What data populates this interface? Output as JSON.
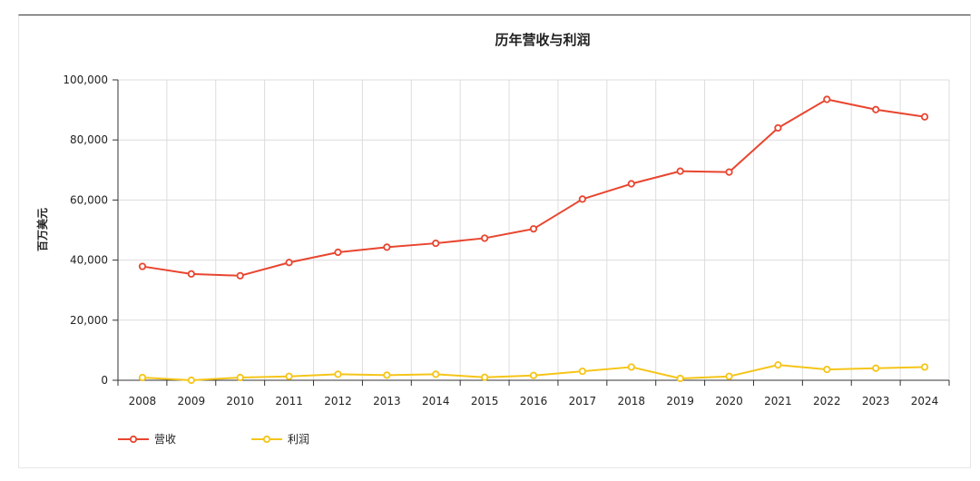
{
  "chart_data": {
    "type": "line",
    "title": "历年营收与利润",
    "ylabel": "百万美元",
    "xlabel": "",
    "x": [
      "2008",
      "2009",
      "2010",
      "2011",
      "2012",
      "2013",
      "2014",
      "2015",
      "2016",
      "2017",
      "2018",
      "2019",
      "2020",
      "2021",
      "2022",
      "2023",
      "2024"
    ],
    "ylim": [
      0,
      100000
    ],
    "yticks": [
      0,
      20000,
      40000,
      60000,
      80000,
      100000
    ],
    "ytick_labels": [
      "0",
      "20,000",
      "40,000",
      "60,000",
      "80,000",
      "100,000"
    ],
    "grid": true,
    "legend_position": "bottom-left",
    "series": [
      {
        "name": "营收",
        "color": "#e8452f",
        "values": [
          37900,
          35400,
          34800,
          39200,
          42600,
          44300,
          45600,
          47300,
          50400,
          60300,
          65400,
          69600,
          69300,
          84000,
          93500,
          90100,
          87700
        ]
      },
      {
        "name": "利润",
        "color": "#f5c518",
        "values": [
          900,
          0,
          900,
          1300,
          2000,
          1700,
          2000,
          1000,
          1600,
          3000,
          4400,
          600,
          1300,
          5100,
          3600,
          4000,
          4400
        ]
      }
    ]
  }
}
